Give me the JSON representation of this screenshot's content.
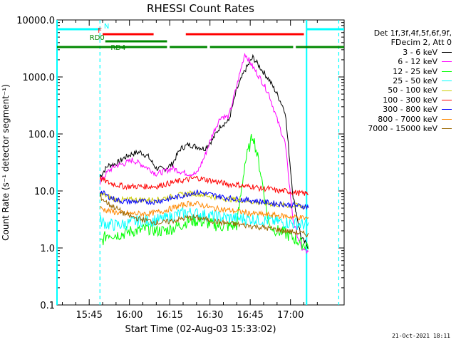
{
  "chart_data": {
    "type": "line",
    "title": "RHESSI Count Rates",
    "xlabel": "Start Time (02-Aug-03 15:33:02)",
    "ylabel": "Count Rate (s⁻¹ detector segment⁻¹)",
    "ylog": true,
    "ylim": [
      0.1,
      10000
    ],
    "xlim_min_since_1533": [
      0,
      107
    ],
    "x_ticks": [
      "15:45",
      "16:00",
      "16:15",
      "16:30",
      "16:45",
      "17:00"
    ],
    "y_ticks": [
      "0.1",
      "1.0",
      "10.0",
      "100.0",
      "1000.0",
      "10000.0"
    ],
    "x_minutes": [
      3,
      7,
      10,
      13,
      16,
      19,
      22,
      25,
      28,
      31,
      34,
      37,
      40,
      43,
      46,
      49,
      52,
      55,
      58,
      61,
      64,
      67,
      70,
      73,
      76,
      79,
      82,
      85,
      88,
      91,
      94
    ],
    "series": [
      {
        "name": "3 - 6 keV",
        "color": "#000000",
        "values": [
          null,
          null,
          null,
          null,
          18,
          28,
          30,
          38,
          45,
          48,
          40,
          25,
          24,
          30,
          55,
          65,
          60,
          55,
          80,
          140,
          170,
          600,
          1300,
          2200,
          1400,
          900,
          500,
          250,
          8,
          1.5,
          1.0
        ]
      },
      {
        "name": "6 - 12 keV",
        "color": "#ff00ff",
        "values": [
          null,
          null,
          null,
          null,
          14,
          22,
          28,
          30,
          35,
          30,
          25,
          20,
          22,
          25,
          22,
          20,
          20,
          40,
          100,
          200,
          200,
          700,
          2600,
          1500,
          900,
          500,
          180,
          70,
          3,
          1.0,
          0.8
        ]
      },
      {
        "name": "12 - 25 keV",
        "color": "#00ff00",
        "values": [
          null,
          null,
          null,
          null,
          1.2,
          1.8,
          1.7,
          1.8,
          2.0,
          2.0,
          2.2,
          2.0,
          2.0,
          2.2,
          2.5,
          3.0,
          3.0,
          2.8,
          2.6,
          2.4,
          2.4,
          2.5,
          30,
          100,
          20,
          2.5,
          2.0,
          1.8,
          1.5,
          1.2,
          1.1
        ]
      },
      {
        "name": "25 - 50 keV",
        "color": "#00ffff",
        "values": [
          null,
          null,
          null,
          null,
          3.0,
          2.6,
          2.5,
          2.6,
          2.8,
          3.0,
          3.0,
          3.1,
          3.2,
          3.6,
          4.0,
          4.2,
          4.0,
          3.8,
          3.6,
          3.5,
          3.4,
          3.3,
          3.3,
          3.2,
          3.1,
          3.0,
          2.9,
          2.8,
          2.7,
          2.6,
          2.5
        ]
      },
      {
        "name": "50 - 100 keV",
        "color": "#cccc00",
        "values": [
          null,
          null,
          null,
          null,
          9,
          8,
          7,
          7,
          7,
          7,
          7,
          7,
          7.5,
          8,
          8.5,
          9,
          9,
          8.5,
          8,
          7.5,
          7.2,
          7,
          6.8,
          6.5,
          6.2,
          6,
          5.8,
          5.6,
          5.5,
          5.4,
          5.3
        ]
      },
      {
        "name": "100 - 300 keV",
        "color": "#ff0000",
        "values": [
          null,
          null,
          null,
          null,
          17,
          14,
          13,
          12,
          12,
          12,
          12,
          12,
          13,
          14,
          15,
          16,
          17,
          16,
          15,
          14,
          13,
          13,
          12,
          12,
          11,
          11,
          10,
          10,
          9.5,
          9,
          9
        ]
      },
      {
        "name": "300 - 800 keV",
        "color": "#0000ff",
        "values": [
          null,
          null,
          null,
          null,
          10,
          8,
          7,
          6.5,
          6.5,
          6.5,
          6.5,
          6.5,
          7,
          7.5,
          8,
          9,
          9.5,
          9,
          8.5,
          8,
          7.5,
          7.2,
          7,
          6.8,
          6.5,
          6.2,
          6,
          5.8,
          5.6,
          5.4,
          5.3
        ]
      },
      {
        "name": "800 - 7000 keV",
        "color": "#ff8800",
        "values": [
          null,
          null,
          null,
          null,
          5,
          4.5,
          4.2,
          4.0,
          4.0,
          4.0,
          4.0,
          4.2,
          4.5,
          5.0,
          5.5,
          6.0,
          6.0,
          5.5,
          5.0,
          4.8,
          4.6,
          4.4,
          4.2,
          4.0,
          3.9,
          3.8,
          3.7,
          3.6,
          3.5,
          3.4,
          3.3
        ]
      },
      {
        "name": "7000 - 15000 keV",
        "color": "#996600",
        "values": [
          null,
          null,
          null,
          null,
          8,
          6,
          5,
          4,
          3.5,
          3.2,
          3,
          2.8,
          2.8,
          3,
          3.2,
          3.4,
          3.4,
          3.2,
          3,
          2.8,
          2.7,
          2.6,
          2.5,
          2.4,
          2.3,
          2.2,
          2.1,
          2.0,
          1.9,
          1.8,
          1.7
        ]
      }
    ],
    "vlines_min_since_1533": [
      {
        "t": 16,
        "style": "dashed",
        "color": "#00ffff"
      },
      {
        "t": 93,
        "style": "solid",
        "color": "#00ffff"
      },
      {
        "t": 0,
        "style": "solid",
        "color": "#00ffff"
      },
      {
        "t": 105,
        "style": "dashed",
        "color": "#00ffff"
      }
    ],
    "bars": [
      {
        "label": "N",
        "color": "#00ffff",
        "segments": [
          [
            0,
            16
          ],
          [
            93,
            107
          ]
        ]
      },
      {
        "label": "F",
        "color": "#ff0000",
        "segments": [
          [
            17,
            36
          ],
          [
            48,
            92
          ]
        ]
      },
      {
        "label": "RD0",
        "color": "#008800",
        "segments": [
          [
            18,
            41
          ]
        ]
      },
      {
        "label": "RD4",
        "color": "#008800",
        "segments": [
          [
            0,
            41
          ],
          [
            42,
            56
          ],
          [
            57,
            88
          ],
          [
            89,
            107
          ]
        ]
      }
    ],
    "legend": {
      "header": [
        "Det 1f,3f,4f,5f,6f,9f,",
        "FDecim 2, Att 0"
      ],
      "position": "top-right"
    }
  },
  "stamp": "21-Oct-2021 18:11"
}
